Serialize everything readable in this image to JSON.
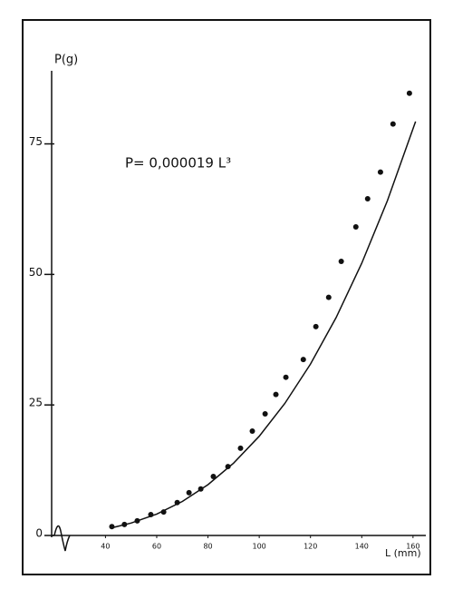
{
  "chart_data": {
    "type": "scatter",
    "y_label": "P(g)",
    "x_label": "L (mm)",
    "annotation": "P= 0,000019 L³",
    "xlim": [
      19,
      165
    ],
    "ylim": [
      0,
      89
    ],
    "xticks": [
      40,
      60,
      80,
      100,
      120,
      140,
      160
    ],
    "yticks": [
      0,
      25,
      50,
      75
    ],
    "color": "#111111",
    "points": {
      "x": [
        42.5,
        47.4,
        52.4,
        57.7,
        62.7,
        68,
        72.6,
        77.2,
        82.1,
        87.8,
        92.7,
        97.3,
        102.3,
        106.5,
        110.4,
        117.2,
        122.1,
        127.1,
        132,
        137.7,
        142.3,
        147.3,
        152.2,
        158.6
      ],
      "y": [
        1.7,
        2.1,
        2.8,
        4.0,
        4.5,
        6.3,
        8.2,
        8.9,
        11.3,
        13.2,
        16.7,
        20,
        23.3,
        27,
        30.3,
        33.7,
        40,
        45.6,
        52.5,
        59.1,
        64.5,
        69.6,
        78.8,
        84.7
      ]
    },
    "curve": {
      "x": [
        42,
        50,
        60,
        70,
        80,
        90,
        100,
        110,
        120,
        130,
        140,
        150,
        161
      ],
      "y": [
        1.41,
        2.38,
        4.1,
        6.52,
        9.73,
        13.85,
        19,
        25.29,
        32.83,
        41.74,
        52.14,
        64.13,
        79.29
      ]
    }
  }
}
